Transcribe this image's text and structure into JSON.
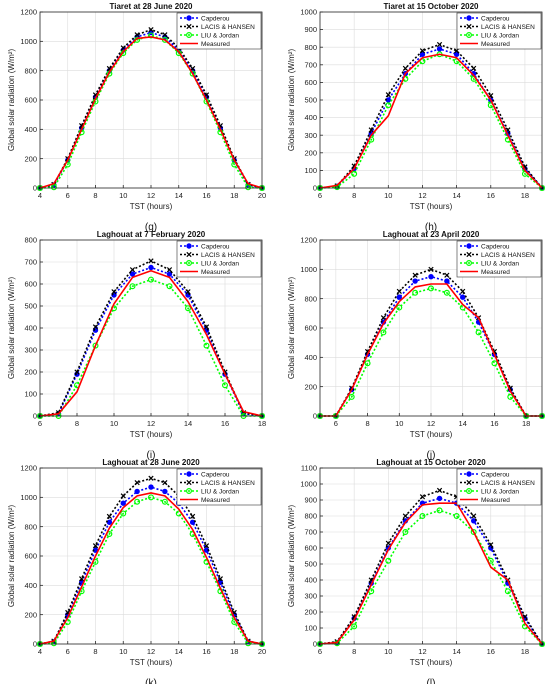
{
  "legend_labels": {
    "capderou": "Capderou",
    "lacis": "LACIS & HANSEN",
    "liu": "LIU & Jordan",
    "measured": "Measured"
  },
  "colors": {
    "capderou": "#0000ff",
    "lacis": "#000000",
    "liu": "#00ff00",
    "measured": "#ff0000",
    "grid": "#dcdcdc",
    "axis": "#262626"
  },
  "chart_data": [
    {
      "type": "line",
      "panel_label": "(g)",
      "title": "Tiaret at 28 June 2020",
      "xlabel": "TST (hours)",
      "ylabel": "Global solar radiation (W/m²)",
      "xlim": [
        4,
        20
      ],
      "xticks": [
        4,
        6,
        8,
        10,
        12,
        14,
        16,
        18,
        20
      ],
      "ylim": [
        0,
        1200
      ],
      "yticks": [
        0,
        200,
        400,
        600,
        800,
        1000,
        1200
      ],
      "grid": true,
      "legend": "top-right",
      "x": [
        4,
        5,
        6,
        7,
        8,
        9,
        10,
        11,
        12,
        13,
        14,
        15,
        16,
        17,
        18,
        19,
        20
      ],
      "series": [
        {
          "name": "Capderou",
          "values": [
            0,
            20,
            190,
            410,
            620,
            800,
            940,
            1030,
            1060,
            1030,
            940,
            800,
            620,
            410,
            190,
            20,
            0
          ]
        },
        {
          "name": "LACIS & HANSEN",
          "values": [
            0,
            25,
            200,
            425,
            635,
            815,
            955,
            1045,
            1080,
            1045,
            955,
            815,
            635,
            425,
            200,
            25,
            0
          ]
        },
        {
          "name": "LIU & Jordan",
          "values": [
            0,
            5,
            160,
            380,
            590,
            780,
            920,
            1010,
            1040,
            1010,
            920,
            780,
            590,
            380,
            160,
            5,
            0
          ]
        },
        {
          "name": "Measured",
          "values": [
            0,
            30,
            190,
            400,
            610,
            790,
            930,
            1020,
            1030,
            1010,
            930,
            780,
            600,
            400,
            190,
            30,
            0
          ]
        }
      ]
    },
    {
      "type": "line",
      "panel_label": "(h)",
      "title": "Tiaret at 15 October 2020",
      "xlabel": "TST (hours)",
      "ylabel": "Global solar radiation (W/m²)",
      "xlim": [
        6,
        19
      ],
      "xticks": [
        6,
        8,
        10,
        12,
        14,
        16,
        18
      ],
      "ylim": [
        0,
        1000
      ],
      "yticks": [
        0,
        100,
        200,
        300,
        400,
        500,
        600,
        700,
        800,
        900,
        1000
      ],
      "grid": true,
      "legend": "top-right",
      "x": [
        6,
        7,
        8,
        9,
        10,
        11,
        12,
        13,
        14,
        15,
        16,
        17,
        18,
        19
      ],
      "series": [
        {
          "name": "Capderou",
          "values": [
            0,
            10,
            110,
            310,
            500,
            650,
            760,
            790,
            760,
            650,
            500,
            310,
            110,
            0
          ]
        },
        {
          "name": "LACIS & HANSEN",
          "values": [
            0,
            12,
            125,
            330,
            530,
            680,
            780,
            815,
            780,
            680,
            525,
            330,
            120,
            0
          ]
        },
        {
          "name": "LIU & Jordan",
          "values": [
            0,
            5,
            80,
            275,
            470,
            620,
            720,
            760,
            720,
            620,
            470,
            275,
            80,
            0
          ]
        },
        {
          "name": "Measured",
          "values": [
            0,
            15,
            110,
            300,
            410,
            650,
            740,
            760,
            740,
            640,
            500,
            300,
            100,
            0
          ]
        }
      ]
    },
    {
      "type": "line",
      "panel_label": "(i)",
      "title": "Laghouat at 7 February 2020",
      "xlabel": "TST (hours)",
      "ylabel": "Global solar radiation (W/m²)",
      "xlim": [
        6,
        18
      ],
      "xticks": [
        6,
        8,
        10,
        12,
        14,
        16,
        18
      ],
      "ylim": [
        0,
        800
      ],
      "yticks": [
        0,
        100,
        200,
        300,
        400,
        500,
        600,
        700,
        800
      ],
      "grid": true,
      "legend": "top-right",
      "x": [
        6,
        7,
        8,
        9,
        10,
        11,
        12,
        13,
        14,
        15,
        16,
        17,
        18
      ],
      "series": [
        {
          "name": "Capderou",
          "values": [
            0,
            10,
            190,
            390,
            550,
            645,
            675,
            645,
            550,
            390,
            190,
            10,
            0
          ]
        },
        {
          "name": "LACIS & HANSEN",
          "values": [
            0,
            15,
            200,
            405,
            565,
            665,
            705,
            665,
            565,
            405,
            200,
            15,
            0
          ]
        },
        {
          "name": "LIU & Jordan",
          "values": [
            0,
            0,
            140,
            320,
            490,
            590,
            620,
            590,
            490,
            320,
            140,
            0,
            0
          ]
        },
        {
          "name": "Measured",
          "values": [
            0,
            10,
            110,
            320,
            510,
            630,
            660,
            630,
            520,
            370,
            190,
            20,
            0
          ]
        }
      ]
    },
    {
      "type": "line",
      "panel_label": "(j)",
      "title": "Laghouat at 23 April 2020",
      "xlabel": "TST (hours)",
      "ylabel": "Global solar radiation (W/m²)",
      "xlim": [
        5,
        19
      ],
      "xticks": [
        6,
        8,
        10,
        12,
        14,
        16,
        18
      ],
      "ylim": [
        0,
        1200
      ],
      "yticks": [
        0,
        200,
        400,
        600,
        800,
        1000,
        1200
      ],
      "grid": true,
      "legend": "top-right",
      "x": [
        5,
        6,
        7,
        8,
        9,
        10,
        11,
        12,
        13,
        14,
        15,
        16,
        17,
        18,
        19
      ],
      "series": [
        {
          "name": "Capderou",
          "values": [
            0,
            0,
            180,
            420,
            640,
            810,
            920,
            950,
            920,
            810,
            640,
            420,
            180,
            0,
            0
          ]
        },
        {
          "name": "LACIS & HANSEN",
          "values": [
            0,
            0,
            190,
            440,
            670,
            850,
            960,
            1000,
            960,
            850,
            670,
            440,
            190,
            0,
            0
          ]
        },
        {
          "name": "LIU & Jordan",
          "values": [
            0,
            0,
            130,
            360,
            570,
            740,
            840,
            870,
            840,
            740,
            570,
            360,
            130,
            0,
            0
          ]
        },
        {
          "name": "Measured",
          "values": [
            0,
            0,
            180,
            420,
            630,
            780,
            880,
            900,
            900,
            760,
            670,
            420,
            170,
            0,
            0
          ]
        }
      ]
    },
    {
      "type": "line",
      "panel_label": "(k)",
      "title": "Laghouat at 28 June 2020",
      "xlabel": "TST (hours)",
      "ylabel": "Global solar radiation (W/m²)",
      "xlim": [
        4,
        20
      ],
      "xticks": [
        4,
        6,
        8,
        10,
        12,
        14,
        16,
        18,
        20
      ],
      "ylim": [
        0,
        1200
      ],
      "yticks": [
        0,
        200,
        400,
        600,
        800,
        1000,
        1200
      ],
      "grid": true,
      "legend": "top-right",
      "x": [
        4,
        5,
        6,
        7,
        8,
        9,
        10,
        11,
        12,
        13,
        14,
        15,
        16,
        17,
        18,
        19,
        20
      ],
      "series": [
        {
          "name": "Capderou",
          "values": [
            0,
            15,
            200,
            420,
            640,
            830,
            960,
            1040,
            1070,
            1040,
            960,
            830,
            640,
            420,
            200,
            15,
            0
          ]
        },
        {
          "name": "LACIS & HANSEN",
          "values": [
            0,
            20,
            215,
            445,
            670,
            870,
            1010,
            1100,
            1130,
            1100,
            1010,
            870,
            670,
            445,
            215,
            20,
            0
          ]
        },
        {
          "name": "LIU & Jordan",
          "values": [
            0,
            5,
            150,
            360,
            560,
            750,
            890,
            970,
            1000,
            970,
            890,
            750,
            560,
            360,
            150,
            5,
            0
          ]
        },
        {
          "name": "Measured",
          "values": [
            0,
            20,
            180,
            390,
            600,
            790,
            930,
            1010,
            1030,
            1010,
            920,
            780,
            590,
            380,
            180,
            20,
            0
          ]
        }
      ]
    },
    {
      "type": "line",
      "panel_label": "(l)",
      "title": "Laghouat at 15 October 2020",
      "xlabel": "TST (hours)",
      "ylabel": "Global solar radiation (W/m²)",
      "xlim": [
        6,
        19
      ],
      "xticks": [
        6,
        8,
        10,
        12,
        14,
        16,
        18
      ],
      "ylim": [
        0,
        1100
      ],
      "yticks": [
        0,
        100,
        200,
        300,
        400,
        500,
        600,
        700,
        800,
        900,
        1000,
        1100
      ],
      "grid": true,
      "legend": "top-right",
      "x": [
        6,
        7,
        8,
        9,
        10,
        11,
        12,
        13,
        14,
        15,
        16,
        17,
        18,
        19
      ],
      "series": [
        {
          "name": "Capderou",
          "values": [
            0,
            10,
            160,
            380,
            600,
            770,
            880,
            910,
            880,
            770,
            600,
            380,
            160,
            0
          ]
        },
        {
          "name": "LACIS & HANSEN",
          "values": [
            0,
            15,
            170,
            400,
            630,
            800,
            920,
            960,
            920,
            800,
            620,
            400,
            170,
            0
          ]
        },
        {
          "name": "LIU & Jordan",
          "values": [
            0,
            5,
            110,
            330,
            520,
            700,
            800,
            835,
            800,
            700,
            520,
            330,
            110,
            0
          ]
        },
        {
          "name": "Measured",
          "values": [
            0,
            10,
            150,
            370,
            590,
            760,
            870,
            880,
            880,
            700,
            480,
            400,
            130,
            0
          ]
        }
      ]
    }
  ]
}
